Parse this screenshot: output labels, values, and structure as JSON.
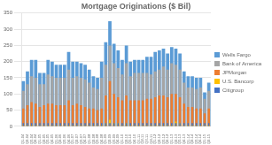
{
  "chart_data": {
    "type": "bar",
    "title": "Mortgage Originations ($ Bil)",
    "categories": [
      "Q1-04",
      "Q2-04",
      "Q3-04",
      "Q4-04",
      "Q1-05",
      "Q2-05",
      "Q3-05",
      "Q4-05",
      "Q1-06",
      "Q2-06",
      "Q3-06",
      "Q4-06",
      "Q1-07",
      "Q2-07",
      "Q3-07",
      "Q4-07",
      "Q1-08",
      "Q2-08",
      "Q3-08",
      "Q4-08",
      "Q1-09",
      "Q2-09",
      "Q3-09",
      "Q4-09",
      "Q1-10",
      "Q2-10",
      "Q3-10",
      "Q4-10",
      "Q1-11",
      "Q2-11",
      "Q3-11",
      "Q4-11",
      "Q1-12",
      "Q2-12",
      "Q3-12",
      "Q4-12",
      "Q1-13",
      "Q2-13",
      "Q3-13",
      "Q4-13",
      "Q1-14",
      "Q2-14",
      "Q3-14",
      "Q4-14",
      "Q1-15",
      "Q2-15"
    ],
    "series": [
      {
        "name": "Wells Fargo",
        "color": "#5B9BD5",
        "values": [
          140,
          170,
          205,
          205,
          165,
          165,
          205,
          200,
          190,
          190,
          190,
          230,
          200,
          200,
          195,
          190,
          175,
          155,
          150,
          200,
          260,
          325,
          255,
          235,
          205,
          250,
          200,
          205,
          205,
          205,
          215,
          215,
          230,
          235,
          240,
          225,
          245,
          240,
          225,
          170,
          155,
          155,
          150,
          150,
          105,
          135
        ]
      },
      {
        "name": "Bank of America",
        "color": "#A5A5A5",
        "values": [
          110,
          130,
          155,
          150,
          130,
          130,
          160,
          155,
          150,
          150,
          150,
          175,
          150,
          155,
          150,
          145,
          135,
          120,
          115,
          150,
          190,
          250,
          195,
          180,
          160,
          195,
          155,
          165,
          165,
          165,
          165,
          160,
          170,
          175,
          185,
          175,
          195,
          190,
          175,
          135,
          120,
          120,
          115,
          120,
          85,
          110
        ]
      },
      {
        "name": "JPMorgan",
        "color": "#ED7D31",
        "values": [
          55,
          65,
          75,
          70,
          60,
          65,
          70,
          70,
          65,
          65,
          65,
          80,
          65,
          70,
          65,
          60,
          55,
          55,
          50,
          55,
          95,
          140,
          100,
          90,
          80,
          95,
          80,
          80,
          80,
          80,
          85,
          85,
          90,
          95,
          95,
          90,
          100,
          100,
          90,
          70,
          60,
          60,
          55,
          55,
          40,
          55
        ]
      },
      {
        "name": "U.S. Bancorp",
        "color": "#FFC000",
        "values": [
          5,
          5,
          5,
          5,
          5,
          5,
          5,
          5,
          5,
          5,
          5,
          5,
          5,
          5,
          5,
          5,
          5,
          5,
          5,
          5,
          10,
          20,
          10,
          10,
          5,
          10,
          5,
          5,
          5,
          5,
          5,
          5,
          5,
          5,
          5,
          5,
          5,
          15,
          10,
          5,
          5,
          5,
          5,
          5,
          5,
          5
        ]
      },
      {
        "name": "Citigroup",
        "color": "#4472C4",
        "values": [
          10,
          10,
          10,
          10,
          10,
          10,
          10,
          10,
          10,
          10,
          10,
          10,
          10,
          10,
          10,
          10,
          10,
          10,
          10,
          10,
          10,
          10,
          10,
          10,
          10,
          10,
          10,
          10,
          10,
          10,
          10,
          10,
          10,
          10,
          10,
          10,
          10,
          10,
          10,
          10,
          10,
          10,
          10,
          10,
          10,
          10
        ]
      }
    ],
    "ylim": [
      0,
      350
    ],
    "yticks": [
      0,
      50,
      100,
      150,
      200,
      250,
      300,
      350
    ],
    "grid": true,
    "legend": "right"
  }
}
